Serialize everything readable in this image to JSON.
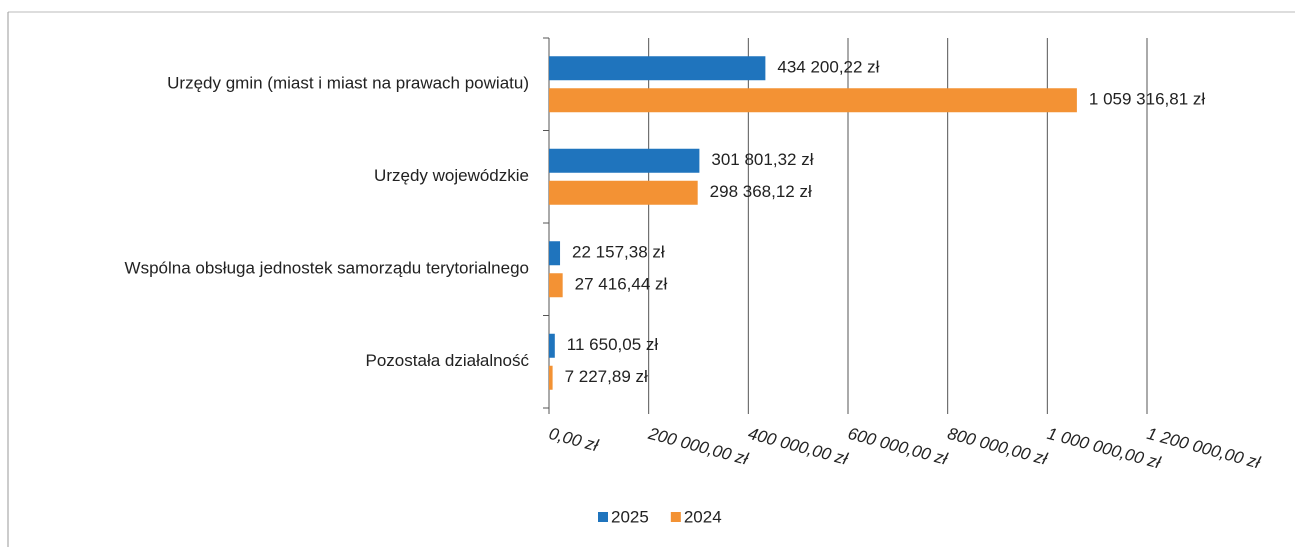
{
  "chart_data": {
    "type": "hbar",
    "categories": [
      "Urzędy gmin (miast i miast na prawach powiatu)",
      "Urzędy wojewódzkie",
      "Wspólna obsługa jednostek samorządu terytorialnego",
      "Pozostała działalność"
    ],
    "series": [
      {
        "name": "2025",
        "color": "#1f74bd",
        "values": [
          434200.22,
          301801.32,
          22157.38,
          11650.05
        ],
        "value_labels": [
          "434 200,22 zł",
          "301 801,32 zł",
          "22 157,38 zł",
          "11 650,05 zł"
        ]
      },
      {
        "name": "2024",
        "color": "#f39234",
        "values": [
          1059316.81,
          298368.12,
          27416.44,
          7227.89
        ],
        "value_labels": [
          "1 059 316,81 zł",
          "298 368,12 zł",
          "27 416,44 zł",
          "7 227,89 zł"
        ]
      }
    ],
    "xlim": [
      0,
      1200000
    ],
    "xticks": [
      {
        "value": 0,
        "label": "0,00 zł"
      },
      {
        "value": 200000,
        "label": "200 000,00 zł"
      },
      {
        "value": 400000,
        "label": "400 000,00 zł"
      },
      {
        "value": 600000,
        "label": "600 000,00 zł"
      },
      {
        "value": 800000,
        "label": "800 000,00 zł"
      },
      {
        "value": 1000000,
        "label": "1 000 000,00 zł"
      },
      {
        "value": 1200000,
        "label": "1 200 000,00 zł"
      }
    ],
    "grid": true,
    "legend": "bottom"
  }
}
